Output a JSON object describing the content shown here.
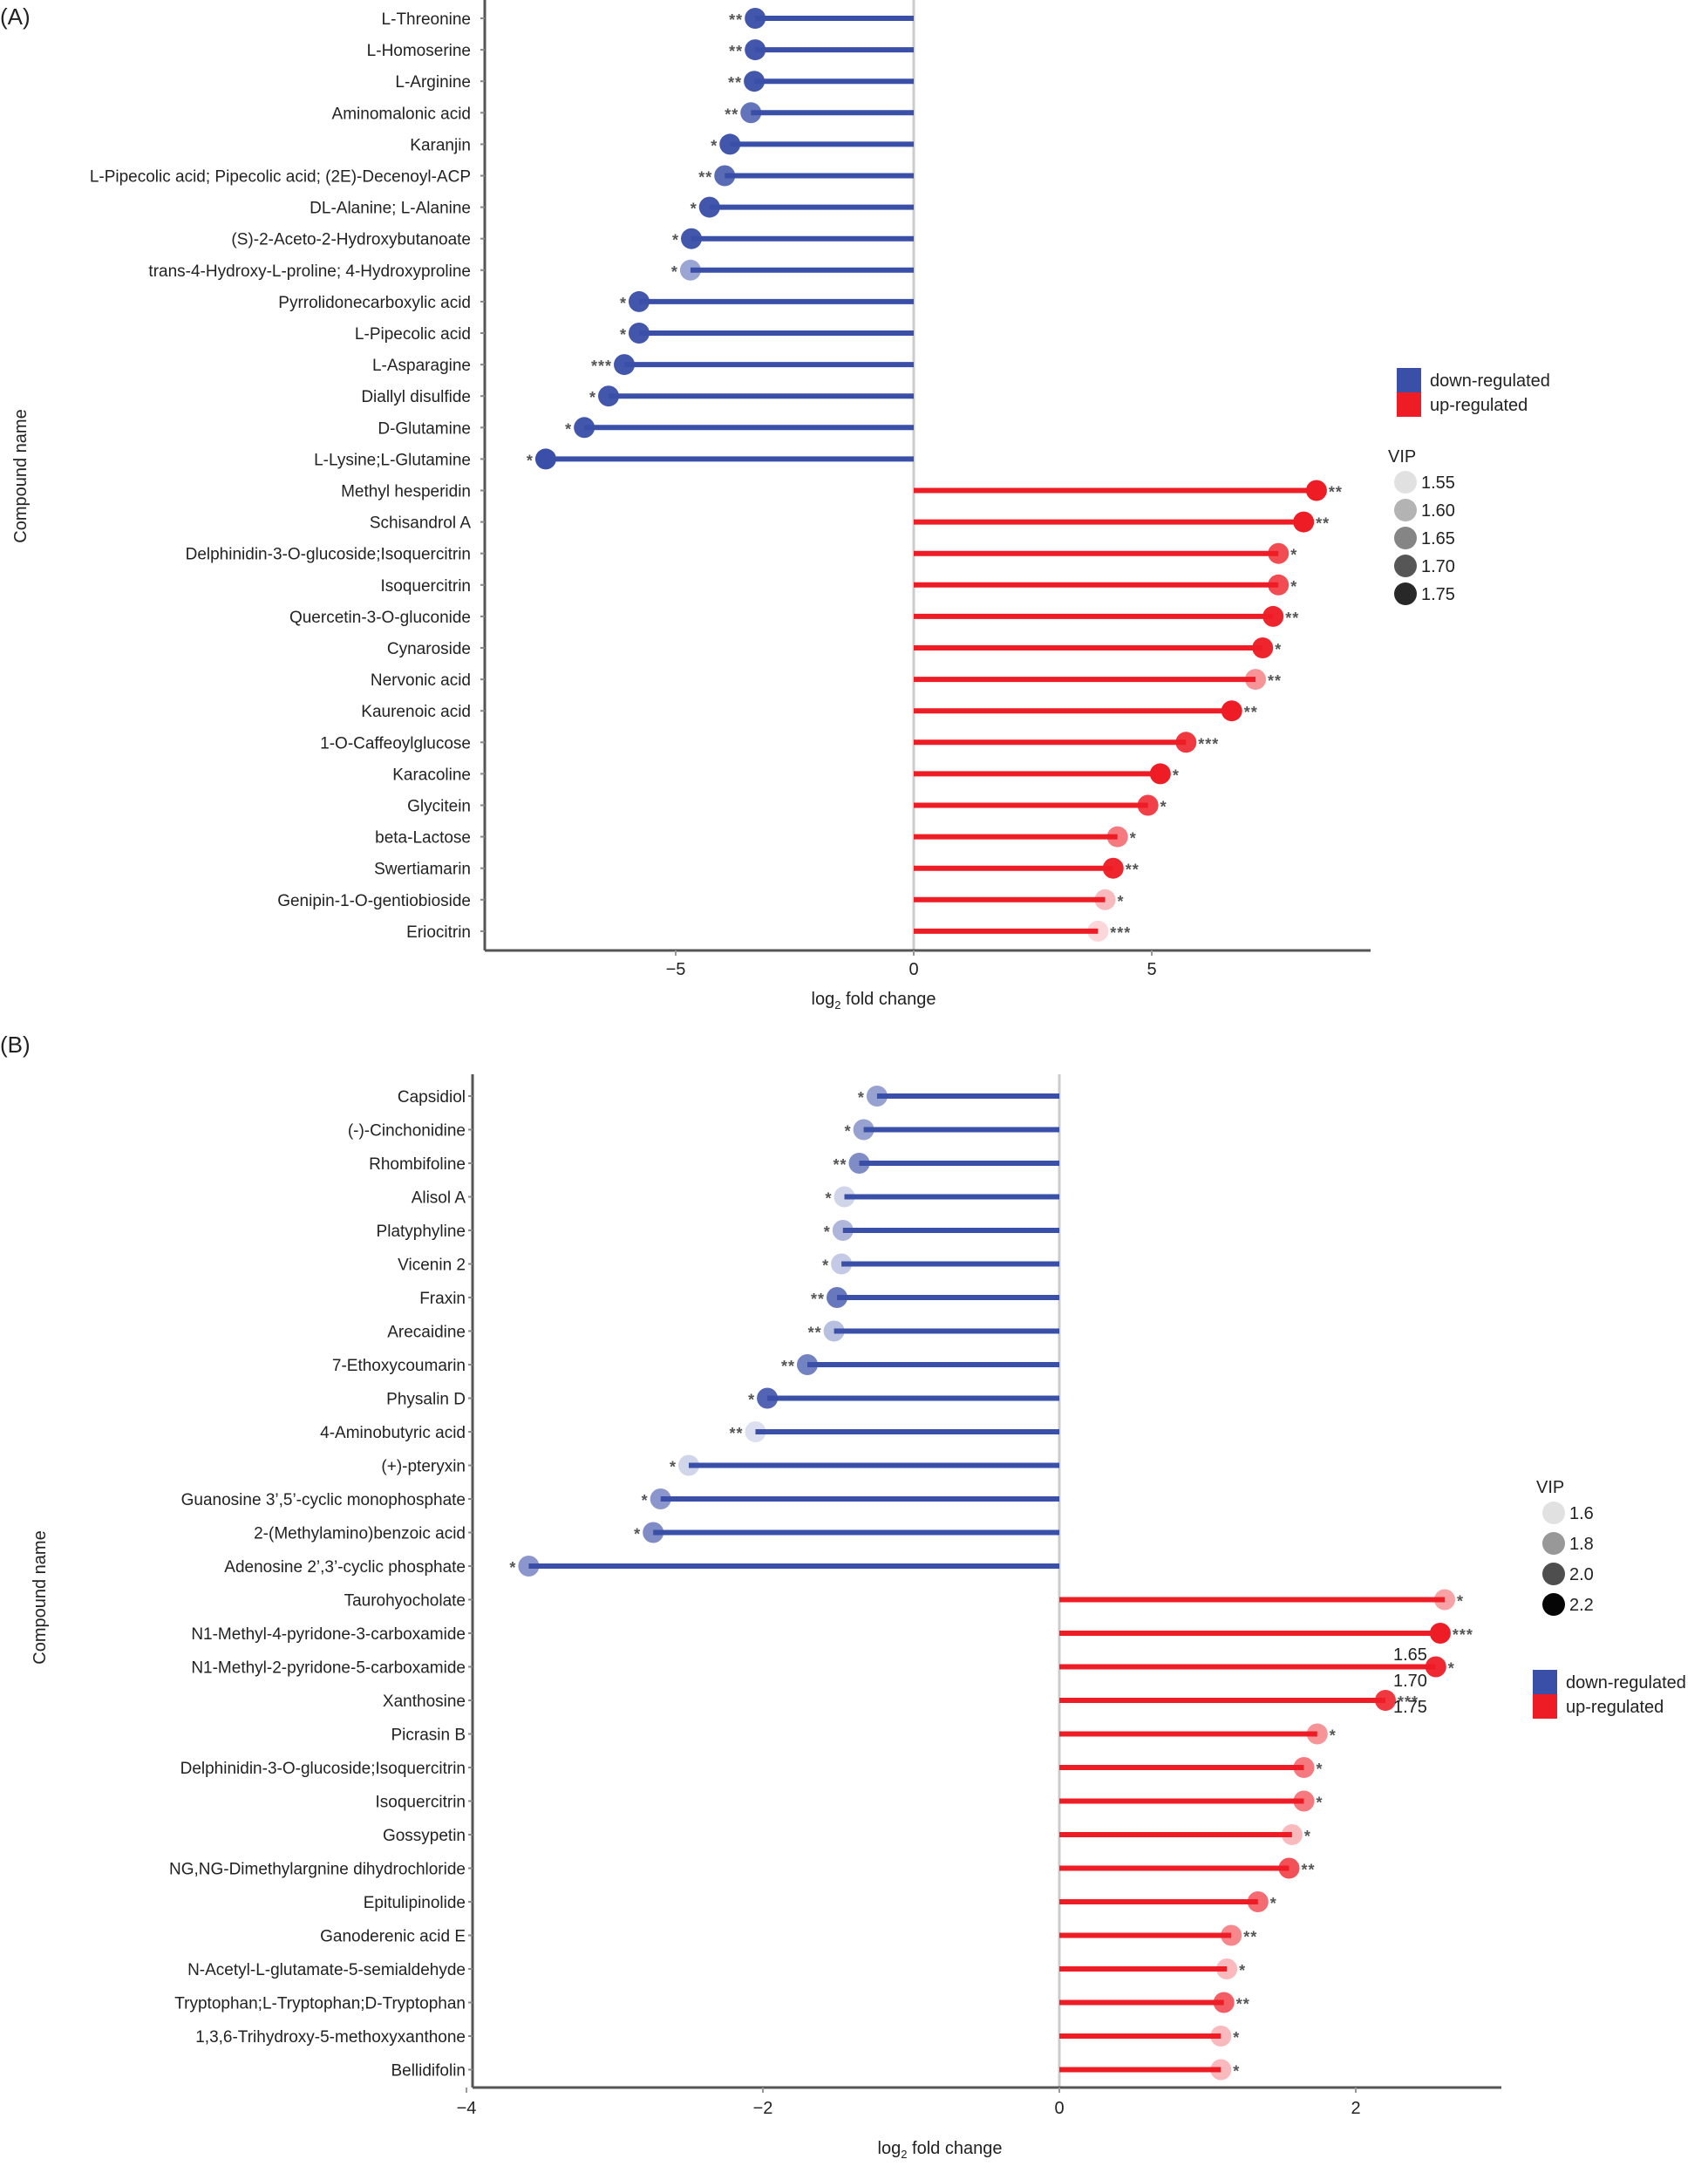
{
  "colors": {
    "down": "#3a4fa8",
    "up": "#ee1c25",
    "axis": "#555555",
    "zero_line": "#cccccc",
    "stars": "#555555"
  },
  "chart_data": [
    {
      "panel": "(A)",
      "type": "lollipop",
      "xlabel": "log2 fold change",
      "xlabel_main": "log",
      "xlabel_sub": "2",
      "xlabel_rest": " fold change",
      "ylabel": "Compound name",
      "xlim": [
        -8.8,
        9.6
      ],
      "xticks": [
        -5,
        0,
        5
      ],
      "xtick_labels": [
        "−5",
        "0",
        "5"
      ],
      "legend_regulation": {
        "title": "",
        "items": [
          {
            "label": "down-regulated",
            "key": "down"
          },
          {
            "label": "up-regulated",
            "key": "up"
          }
        ],
        "position": "right"
      },
      "legend_vip": {
        "title": "VIP",
        "items": [
          "1.55",
          "1.60",
          "1.65",
          "1.70",
          "1.75"
        ],
        "position": "right"
      },
      "points": [
        {
          "name": "L-Threonine",
          "value": -3.33,
          "stars": "**",
          "vip": 1.74,
          "reg": "down"
        },
        {
          "name": "L-Homoserine",
          "value": -3.33,
          "stars": "**",
          "vip": 1.74,
          "reg": "down"
        },
        {
          "name": "L-Arginine",
          "value": -3.35,
          "stars": "**",
          "vip": 1.74,
          "reg": "down"
        },
        {
          "name": "Aminomalonic acid",
          "value": -3.42,
          "stars": "**",
          "vip": 1.7,
          "reg": "down"
        },
        {
          "name": "Karanjin",
          "value": -3.86,
          "stars": "*",
          "vip": 1.74,
          "reg": "down"
        },
        {
          "name": "L-Pipecolic acid; Pipecolic acid; (2E)-Decenoyl-ACP",
          "value": -3.97,
          "stars": "**",
          "vip": 1.71,
          "reg": "down"
        },
        {
          "name": "DL-Alanine; L-Alanine",
          "value": -4.29,
          "stars": "*",
          "vip": 1.74,
          "reg": "down"
        },
        {
          "name": "(S)-2-Aceto-2-Hydroxybutanoate",
          "value": -4.67,
          "stars": "*",
          "vip": 1.74,
          "reg": "down"
        },
        {
          "name": "trans-4-Hydroxy-L-proline; 4-Hydroxyproline",
          "value": -4.69,
          "stars": "*",
          "vip": 1.63,
          "reg": "down"
        },
        {
          "name": "Pyrrolidonecarboxylic acid",
          "value": -5.77,
          "stars": "*",
          "vip": 1.74,
          "reg": "down"
        },
        {
          "name": "L-Pipecolic acid",
          "value": -5.77,
          "stars": "*",
          "vip": 1.74,
          "reg": "down"
        },
        {
          "name": "L-Asparagine",
          "value": -6.08,
          "stars": "***",
          "vip": 1.74,
          "reg": "down"
        },
        {
          "name": "Diallyl disulfide",
          "value": -6.41,
          "stars": "*",
          "vip": 1.74,
          "reg": "down"
        },
        {
          "name": "D-Glutamine",
          "value": -6.92,
          "stars": "*",
          "vip": 1.74,
          "reg": "down"
        },
        {
          "name": "L-Lysine;L-Glutamine",
          "value": -7.73,
          "stars": "*",
          "vip": 1.75,
          "reg": "down"
        },
        {
          "name": "Methyl hesperidin",
          "value": 8.46,
          "stars": "**",
          "vip": 1.75,
          "reg": "up"
        },
        {
          "name": "Schisandrol A",
          "value": 8.19,
          "stars": "**",
          "vip": 1.75,
          "reg": "up"
        },
        {
          "name": "Delphinidin-3-O-glucoside;Isoquercitrin",
          "value": 7.66,
          "stars": "*",
          "vip": 1.7,
          "reg": "up"
        },
        {
          "name": "Isoquercitrin",
          "value": 7.66,
          "stars": "*",
          "vip": 1.7,
          "reg": "up"
        },
        {
          "name": "Quercetin-3-O-gluconide",
          "value": 7.55,
          "stars": "**",
          "vip": 1.74,
          "reg": "up"
        },
        {
          "name": "Cynaroside",
          "value": 7.33,
          "stars": "*",
          "vip": 1.74,
          "reg": "up"
        },
        {
          "name": "Nervonic acid",
          "value": 7.18,
          "stars": "**",
          "vip": 1.62,
          "reg": "up"
        },
        {
          "name": "Kaurenoic acid",
          "value": 6.68,
          "stars": "**",
          "vip": 1.75,
          "reg": "up"
        },
        {
          "name": "1-O-Caffeoylglucose",
          "value": 5.72,
          "stars": "***",
          "vip": 1.72,
          "reg": "up"
        },
        {
          "name": "Karacoline",
          "value": 5.18,
          "stars": "*",
          "vip": 1.75,
          "reg": "up"
        },
        {
          "name": "Glycitein",
          "value": 4.92,
          "stars": "*",
          "vip": 1.71,
          "reg": "up"
        },
        {
          "name": "beta-Lactose",
          "value": 4.28,
          "stars": "*",
          "vip": 1.65,
          "reg": "up"
        },
        {
          "name": "Swertiamarin",
          "value": 4.19,
          "stars": "**",
          "vip": 1.74,
          "reg": "up"
        },
        {
          "name": "Genipin-1-O-gentiobioside",
          "value": 4.02,
          "stars": "*",
          "vip": 1.58,
          "reg": "up"
        },
        {
          "name": "Eriocitrin",
          "value": 3.87,
          "stars": "***",
          "vip": 1.55,
          "reg": "up"
        }
      ]
    },
    {
      "panel": "(B)",
      "type": "lollipop",
      "xlabel": "log2 fold change",
      "xlabel_main": "log",
      "xlabel_sub": "2",
      "xlabel_rest": " fold change",
      "ylabel": "Compound name",
      "xlim": [
        -4,
        3.0
      ],
      "xticks": [
        -4,
        -2,
        0,
        2
      ],
      "xtick_labels": [
        "−4",
        "−2",
        "0",
        "2"
      ],
      "legend_vip": {
        "title": "VIP",
        "items": [
          "1.6",
          "1.8",
          "2.0",
          "2.2"
        ],
        "position": "right"
      },
      "legend_regulation": {
        "title": "",
        "items": [
          {
            "label": "down-regulated",
            "key": "down"
          },
          {
            "label": "up-regulated",
            "key": "up"
          }
        ],
        "position": "right"
      },
      "stray_labels": [
        "1.65",
        "1.70",
        "1.75"
      ],
      "points": [
        {
          "name": "Capsidiol",
          "value": -1.23,
          "stars": "*",
          "vip": 1.8,
          "reg": "down"
        },
        {
          "name": "(-)-Cinchonidine",
          "value": -1.32,
          "stars": "*",
          "vip": 1.8,
          "reg": "down"
        },
        {
          "name": "Rhombifoline",
          "value": -1.35,
          "stars": "**",
          "vip": 1.9,
          "reg": "down"
        },
        {
          "name": "Alisol A",
          "value": -1.45,
          "stars": "*",
          "vip": 1.55,
          "reg": "down"
        },
        {
          "name": "Platyphyline",
          "value": -1.46,
          "stars": "*",
          "vip": 1.7,
          "reg": "down"
        },
        {
          "name": "Vicenin 2",
          "value": -1.47,
          "stars": "*",
          "vip": 1.6,
          "reg": "down"
        },
        {
          "name": "Fraxin",
          "value": -1.5,
          "stars": "**",
          "vip": 2.0,
          "reg": "down"
        },
        {
          "name": "Arecaidine",
          "value": -1.52,
          "stars": "**",
          "vip": 1.65,
          "reg": "down"
        },
        {
          "name": "7-Ethoxycoumarin",
          "value": -1.7,
          "stars": "**",
          "vip": 1.95,
          "reg": "down"
        },
        {
          "name": "Physalin D",
          "value": -1.97,
          "stars": "*",
          "vip": 2.1,
          "reg": "down"
        },
        {
          "name": "4-Aminobutyric acid",
          "value": -2.05,
          "stars": "**",
          "vip": 1.5,
          "reg": "down"
        },
        {
          "name": "(+)-pteryxin",
          "value": -2.5,
          "stars": "*",
          "vip": 1.55,
          "reg": "down"
        },
        {
          "name": "Guanosine 3’,5’-cyclic monophosphate",
          "value": -2.69,
          "stars": "*",
          "vip": 1.85,
          "reg": "down"
        },
        {
          "name": "2-(Methylamino)benzoic acid",
          "value": -2.74,
          "stars": "*",
          "vip": 1.9,
          "reg": "down"
        },
        {
          "name": "Adenosine 2’,3’-cyclic phosphate",
          "value": -3.58,
          "stars": "*",
          "vip": 1.85,
          "reg": "down"
        },
        {
          "name": "Taurohyocholate",
          "value": 2.6,
          "stars": "*",
          "vip": 1.7,
          "reg": "up"
        },
        {
          "name": "N1-Methyl-4-pyridone-3-carboxamide",
          "value": 2.57,
          "stars": "***",
          "vip": 2.2,
          "reg": "up"
        },
        {
          "name": "N1-Methyl-2-pyridone-5-carboxamide",
          "value": 2.54,
          "stars": "*",
          "vip": 2.15,
          "reg": "up"
        },
        {
          "name": "Xanthosine",
          "value": 2.2,
          "stars": "***",
          "vip": 2.1,
          "reg": "up"
        },
        {
          "name": "Picrasin B",
          "value": 1.74,
          "stars": "*",
          "vip": 1.75,
          "reg": "up"
        },
        {
          "name": "Delphinidin-3-O-glucoside;Isoquercitrin",
          "value": 1.65,
          "stars": "*",
          "vip": 1.85,
          "reg": "up"
        },
        {
          "name": "Isoquercitrin",
          "value": 1.65,
          "stars": "*",
          "vip": 1.85,
          "reg": "up"
        },
        {
          "name": "Gossypetin",
          "value": 1.57,
          "stars": "*",
          "vip": 1.6,
          "reg": "up"
        },
        {
          "name": "NG,NG-Dimethylargnine dihydrochloride",
          "value": 1.55,
          "stars": "**",
          "vip": 2.0,
          "reg": "up"
        },
        {
          "name": "Epitulipinolide",
          "value": 1.34,
          "stars": "*",
          "vip": 1.9,
          "reg": "up"
        },
        {
          "name": "Ganoderenic acid E",
          "value": 1.16,
          "stars": "**",
          "vip": 1.8,
          "reg": "up"
        },
        {
          "name": "N-Acetyl-L-glutamate-5-semialdehyde",
          "value": 1.13,
          "stars": "*",
          "vip": 1.6,
          "reg": "up"
        },
        {
          "name": "Tryptophan;L-Tryptophan;D-Tryptophan",
          "value": 1.11,
          "stars": "**",
          "vip": 1.95,
          "reg": "up"
        },
        {
          "name": "1,3,6-Trihydroxy-5-methoxyxanthone",
          "value": 1.09,
          "stars": "*",
          "vip": 1.6,
          "reg": "up"
        },
        {
          "name": "Bellidifolin",
          "value": 1.09,
          "stars": "*",
          "vip": 1.6,
          "reg": "up"
        }
      ]
    }
  ]
}
